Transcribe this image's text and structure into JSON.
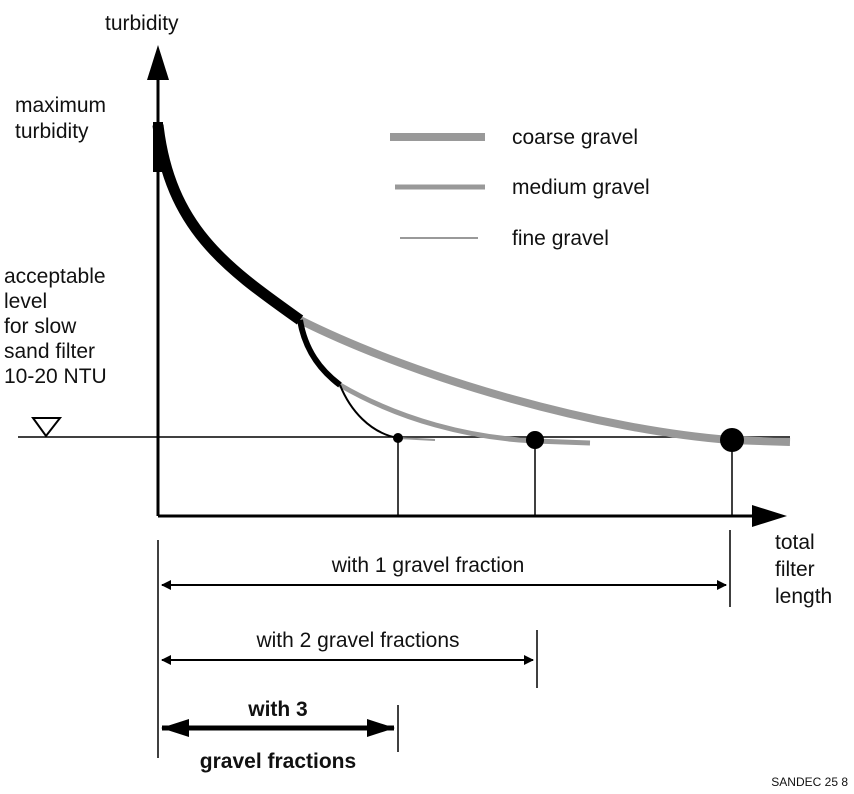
{
  "diagram": {
    "y_axis_label": "turbidity",
    "max_label": [
      "maximum",
      "turbidity"
    ],
    "legend": [
      "coarse gravel",
      "medium gravel",
      "fine gravel"
    ],
    "acceptable_label": [
      "acceptable",
      "level",
      "for slow",
      "sand filter",
      "10-20 NTU"
    ],
    "x_axis_label": [
      "total",
      "filter",
      "length"
    ],
    "spans": [
      "with 1 gravel fraction",
      "with 2 gravel fractions"
    ],
    "span3": [
      "with 3",
      "gravel fractions"
    ],
    "credit": "SANDEC 25 8"
  }
}
